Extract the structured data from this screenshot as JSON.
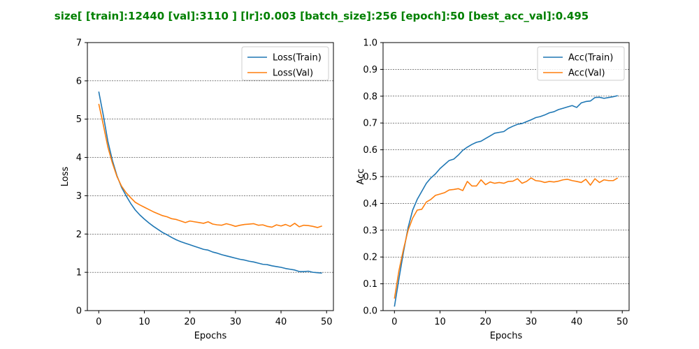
{
  "suptitle": "size[ [train]:12440  [val]:3110 ]  [lr]:0.003  [batch_size]:256  [epoch]:50  [best_acc_val]:0.495",
  "title_color": "#008000",
  "chart_data": [
    {
      "type": "line",
      "xlabel": "Epochs",
      "ylabel": "Loss",
      "xlim": [
        -2.5,
        51.5
      ],
      "ylim": [
        0,
        7
      ],
      "xticks": [
        0,
        10,
        20,
        30,
        40,
        50
      ],
      "yticks": [
        0,
        1,
        2,
        3,
        4,
        5,
        6,
        7
      ],
      "grid": "horizontal dashed",
      "legend_position": "upper right",
      "x": [
        0,
        1,
        2,
        3,
        4,
        5,
        6,
        7,
        8,
        9,
        10,
        11,
        12,
        13,
        14,
        15,
        16,
        17,
        18,
        19,
        20,
        21,
        22,
        23,
        24,
        25,
        26,
        27,
        28,
        29,
        30,
        31,
        32,
        33,
        34,
        35,
        36,
        37,
        38,
        39,
        40,
        41,
        42,
        43,
        44,
        45,
        46,
        47,
        48,
        49
      ],
      "series": [
        {
          "name": "Loss(Train)",
          "color": "#1f77b4",
          "values": [
            5.72,
            5.1,
            4.42,
            3.92,
            3.52,
            3.22,
            3.0,
            2.8,
            2.63,
            2.5,
            2.39,
            2.29,
            2.2,
            2.12,
            2.04,
            1.98,
            1.91,
            1.85,
            1.8,
            1.76,
            1.72,
            1.68,
            1.64,
            1.6,
            1.58,
            1.53,
            1.5,
            1.46,
            1.43,
            1.4,
            1.37,
            1.34,
            1.32,
            1.29,
            1.27,
            1.24,
            1.21,
            1.2,
            1.17,
            1.15,
            1.13,
            1.1,
            1.08,
            1.06,
            1.02,
            1.02,
            1.03,
            1.0,
            0.99,
            0.98
          ]
        },
        {
          "name": "Loss(Val)",
          "color": "#ff7f0e",
          "values": [
            5.4,
            4.85,
            4.27,
            3.85,
            3.5,
            3.25,
            3.08,
            2.95,
            2.83,
            2.76,
            2.7,
            2.64,
            2.58,
            2.53,
            2.48,
            2.45,
            2.4,
            2.38,
            2.34,
            2.3,
            2.34,
            2.32,
            2.3,
            2.28,
            2.32,
            2.26,
            2.24,
            2.23,
            2.27,
            2.24,
            2.2,
            2.23,
            2.25,
            2.26,
            2.27,
            2.23,
            2.24,
            2.2,
            2.18,
            2.24,
            2.21,
            2.25,
            2.2,
            2.28,
            2.19,
            2.23,
            2.22,
            2.2,
            2.17,
            2.21
          ]
        }
      ]
    },
    {
      "type": "line",
      "xlabel": "Epochs",
      "ylabel": "Acc",
      "xlim": [
        -2.5,
        51.5
      ],
      "ylim": [
        0,
        1.0
      ],
      "xticks": [
        0,
        10,
        20,
        30,
        40,
        50
      ],
      "yticks": [
        0,
        0.1,
        0.2,
        0.3,
        0.4,
        0.5,
        0.6,
        0.7,
        0.8,
        0.9,
        1.0
      ],
      "grid": "horizontal dashed",
      "legend_position": "upper right",
      "x": [
        0,
        1,
        2,
        3,
        4,
        5,
        6,
        7,
        8,
        9,
        10,
        11,
        12,
        13,
        14,
        15,
        16,
        17,
        18,
        19,
        20,
        21,
        22,
        23,
        24,
        25,
        26,
        27,
        28,
        29,
        30,
        31,
        32,
        33,
        34,
        35,
        36,
        37,
        38,
        39,
        40,
        41,
        42,
        43,
        44,
        45,
        46,
        47,
        48,
        49
      ],
      "series": [
        {
          "name": "Acc(Train)",
          "color": "#1f77b4",
          "values": [
            0.015,
            0.12,
            0.22,
            0.31,
            0.375,
            0.415,
            0.445,
            0.475,
            0.495,
            0.51,
            0.53,
            0.545,
            0.56,
            0.565,
            0.58,
            0.598,
            0.61,
            0.62,
            0.628,
            0.632,
            0.642,
            0.652,
            0.662,
            0.665,
            0.668,
            0.68,
            0.688,
            0.695,
            0.698,
            0.705,
            0.712,
            0.72,
            0.724,
            0.73,
            0.738,
            0.742,
            0.75,
            0.755,
            0.76,
            0.765,
            0.758,
            0.775,
            0.78,
            0.782,
            0.795,
            0.796,
            0.792,
            0.795,
            0.798,
            0.802
          ]
        },
        {
          "name": "Acc(Val)",
          "color": "#ff7f0e",
          "values": [
            0.045,
            0.15,
            0.23,
            0.3,
            0.345,
            0.375,
            0.378,
            0.405,
            0.415,
            0.43,
            0.435,
            0.44,
            0.45,
            0.452,
            0.455,
            0.448,
            0.482,
            0.465,
            0.465,
            0.488,
            0.47,
            0.48,
            0.475,
            0.478,
            0.475,
            0.482,
            0.483,
            0.492,
            0.475,
            0.482,
            0.495,
            0.485,
            0.483,
            0.478,
            0.482,
            0.48,
            0.483,
            0.488,
            0.49,
            0.485,
            0.482,
            0.478,
            0.49,
            0.468,
            0.492,
            0.478,
            0.488,
            0.485,
            0.485,
            0.495
          ]
        }
      ]
    }
  ]
}
